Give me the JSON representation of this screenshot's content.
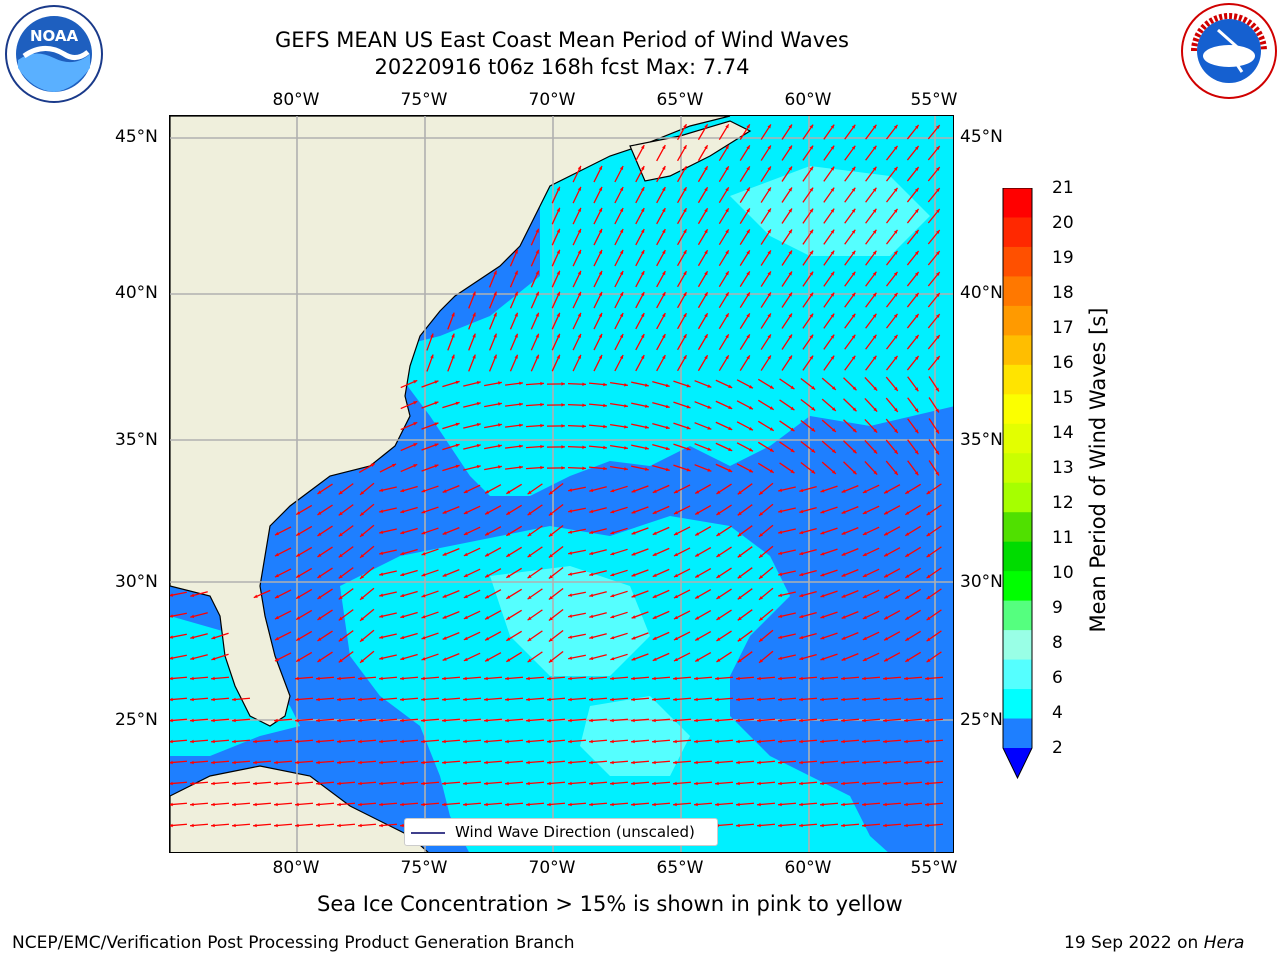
{
  "header": {
    "title_line1": "GEFS MEAN US East Coast Mean Period of Wind Waves",
    "title_line2": "20220916 t06z 168h fcst   Max: 7.74"
  },
  "logos": {
    "noara_left": "NOAA",
    "noaa_ring_text": "NATIONAL OCEANIC AND ATMOSPHERIC ADMINISTRATION · U.S. DEPARTMENT OF COMMERCE",
    "nws_right": "NATIONAL WEATHER SERVICE"
  },
  "map": {
    "lon_labels": [
      "80°W",
      "75°W",
      "70°W",
      "65°W",
      "60°W",
      "55°W"
    ],
    "lat_labels": [
      "45°N",
      "40°N",
      "35°N",
      "30°N",
      "25°N"
    ],
    "legend_text": "Wind Wave Direction (unscaled)",
    "colors": {
      "land": "#efefdc",
      "ocean_dark": "#1e7fff",
      "ocean_cyan": "#00f0ff",
      "ocean_light": "#55ffff",
      "arrow": "#ff0000",
      "grid": "#b0b0b0"
    }
  },
  "colorbar": {
    "label": "Mean Period of Wind Waves [s]",
    "ticks": [
      "21",
      "20",
      "19",
      "18",
      "17",
      "16",
      "15",
      "14",
      "13",
      "12",
      "11",
      "10",
      "9",
      "8",
      "6",
      "4",
      "2"
    ],
    "colors_top_to_bottom": [
      "#ff0000",
      "#ff2800",
      "#ff5000",
      "#ff7800",
      "#ff9a00",
      "#ffbe00",
      "#ffe400",
      "#fbff00",
      "#e3ff00",
      "#caff00",
      "#a6ff00",
      "#50e000",
      "#00dc00",
      "#00ff00",
      "#55ff7f",
      "#99ffe6",
      "#55ffff",
      "#00ffff",
      "#1e7fff"
    ],
    "under_color": "#0000ff"
  },
  "caption": "Sea Ice Concentration > 15% is shown in pink to yellow",
  "footer": {
    "left": "NCEP/EMC/Verification Post Processing Product Generation Branch",
    "right_date": "19 Sep 2022 on ",
    "right_machine": "Hera"
  }
}
